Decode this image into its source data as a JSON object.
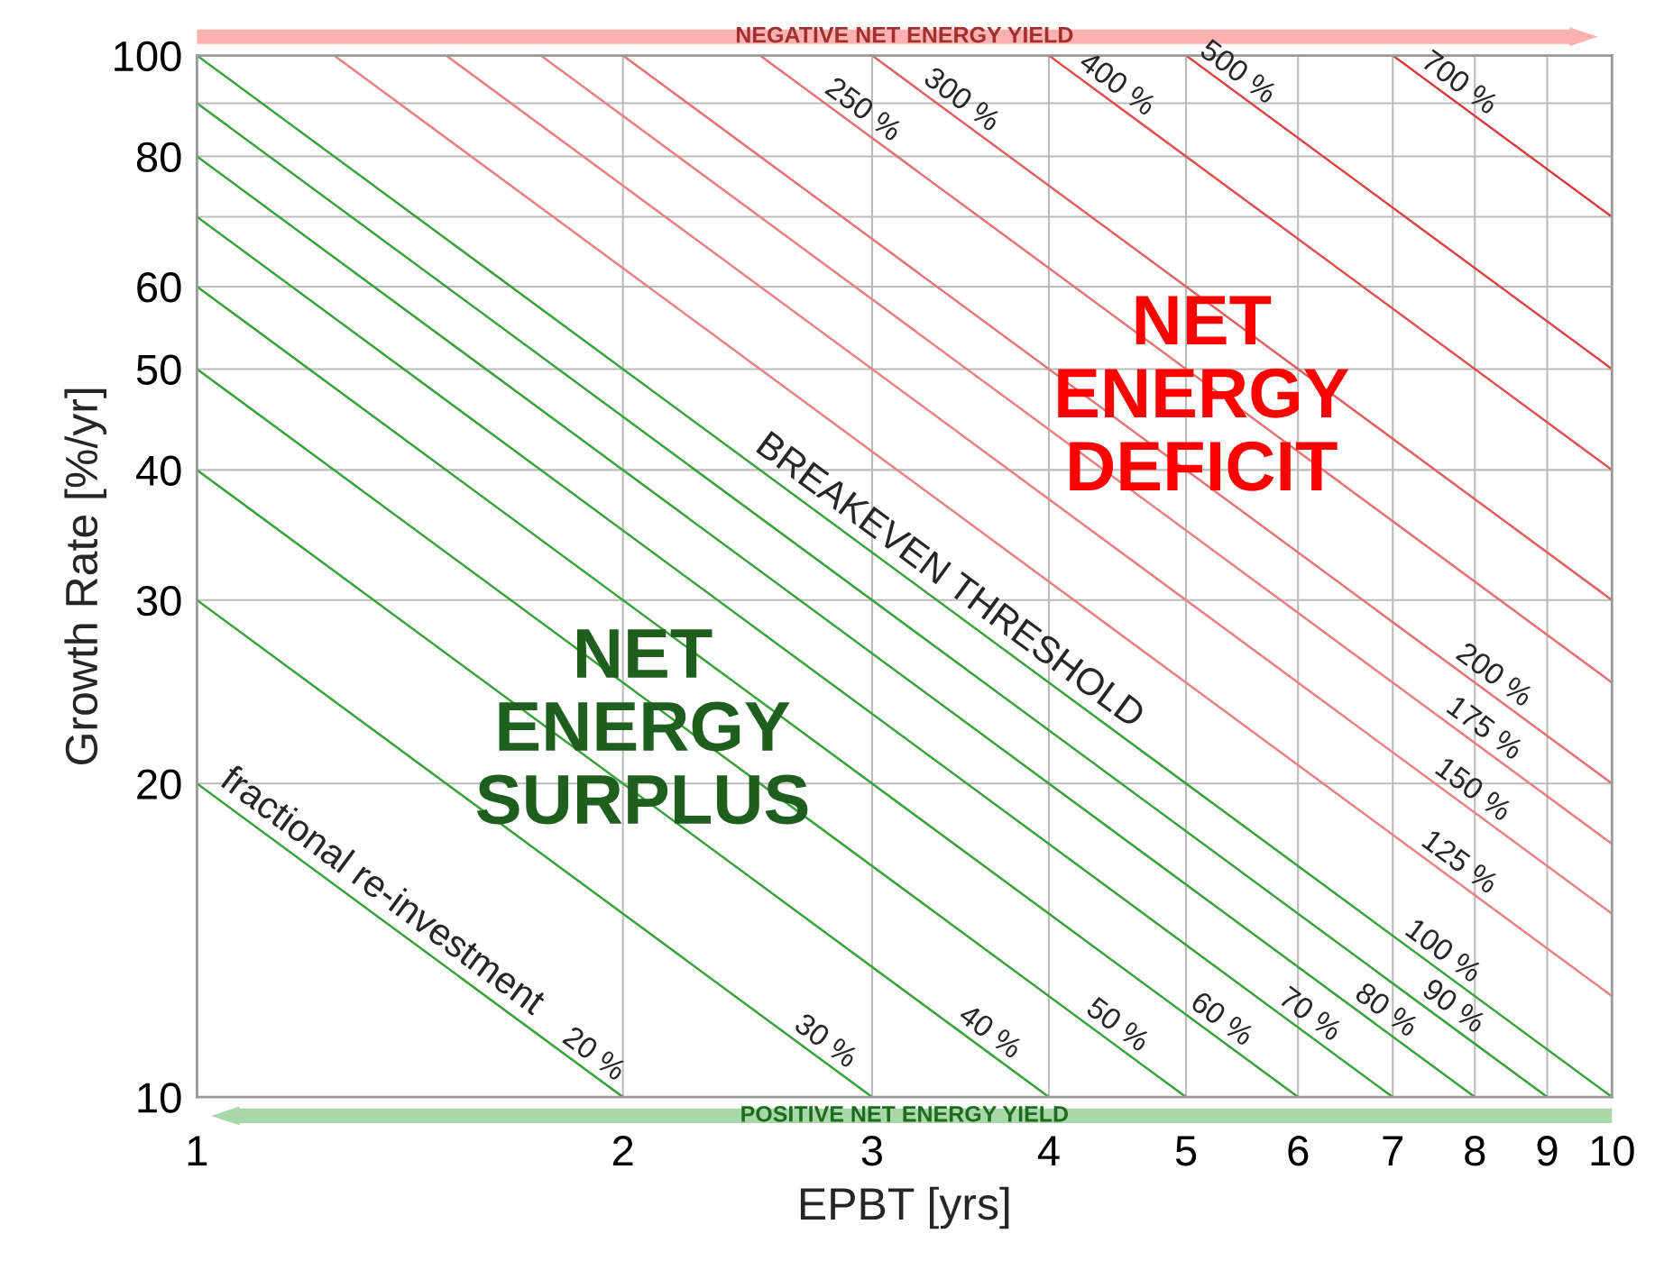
{
  "chart_data": {
    "type": "line",
    "xlabel": "EPBT [yrs]",
    "ylabel": "Growth Rate [%/yr]",
    "log": "xy",
    "xlim": [
      1,
      10
    ],
    "ylim": [
      10,
      100
    ],
    "xticks": [
      1,
      2,
      3,
      4,
      5,
      6,
      7,
      8,
      9,
      10
    ],
    "yticks": [
      10,
      20,
      30,
      40,
      50,
      60,
      {
        "value": 70,
        "label": null
      },
      80,
      {
        "value": 90,
        "label": null
      },
      100
    ],
    "grid": true,
    "legend": false,
    "marker": "none",
    "line_style": "solid",
    "series": [
      {
        "name": "20 %",
        "color": "#3aa23a",
        "x": [
          1,
          2
        ],
        "values": [
          20,
          10
        ]
      },
      {
        "name": "30 %",
        "color": "#3aa23a",
        "x": [
          1,
          3
        ],
        "values": [
          30,
          10
        ]
      },
      {
        "name": "40 %",
        "color": "#3aa23a",
        "x": [
          1,
          4
        ],
        "values": [
          40,
          10
        ]
      },
      {
        "name": "50 %",
        "color": "#3aa23a",
        "x": [
          1,
          5
        ],
        "values": [
          50,
          10
        ]
      },
      {
        "name": "60 %",
        "color": "#3aa23a",
        "x": [
          1,
          6
        ],
        "values": [
          60,
          10
        ]
      },
      {
        "name": "70 %",
        "color": "#3aa23a",
        "x": [
          1,
          7
        ],
        "values": [
          70,
          10
        ]
      },
      {
        "name": "80 %",
        "color": "#3aa23a",
        "x": [
          1,
          8
        ],
        "values": [
          80,
          10
        ]
      },
      {
        "name": "90 %",
        "color": "#3aa23a",
        "x": [
          1,
          9
        ],
        "values": [
          90,
          10
        ]
      },
      {
        "name": "100 %",
        "color": "#3aa23a",
        "x": [
          1,
          10
        ],
        "values": [
          100,
          10
        ]
      },
      {
        "name": "125 %",
        "color": "#e88080",
        "x": [
          1.25,
          10
        ],
        "values": [
          100,
          12.5
        ]
      },
      {
        "name": "150 %",
        "color": "#e88080",
        "x": [
          1.5,
          10
        ],
        "values": [
          100,
          15
        ]
      },
      {
        "name": "175 %",
        "color": "#e88080",
        "x": [
          1.75,
          10
        ],
        "values": [
          100,
          17.5
        ]
      },
      {
        "name": "200 %",
        "color": "#e57373",
        "x": [
          2,
          10
        ],
        "values": [
          100,
          20
        ]
      },
      {
        "name": "250 %",
        "color": "#e57373",
        "x": [
          2.5,
          10
        ],
        "values": [
          100,
          25
        ]
      },
      {
        "name": "300 %",
        "color": "#e06060",
        "x": [
          3,
          10
        ],
        "values": [
          100,
          30
        ]
      },
      {
        "name": "400 %",
        "color": "#e05050",
        "x": [
          4,
          10
        ],
        "values": [
          100,
          40
        ]
      },
      {
        "name": "500 %",
        "color": "#dc4444",
        "x": [
          5,
          10
        ],
        "values": [
          100,
          50
        ]
      },
      {
        "name": "700 %",
        "color": "#d83a3a",
        "x": [
          7,
          10
        ],
        "values": [
          100,
          70
        ]
      }
    ],
    "annotations": [
      "NEGATIVE NET ENERGY YIELD",
      "POSITIVE NET ENERGY YIELD",
      "NET\nENERGY\nDEFICIT",
      "NET\nENERGY\nSURPLUS",
      {
        "text": "BREAKEVEN THRESHOLD",
        "x": 3.4,
        "y": 29.4
      },
      {
        "text": "fractional re-investment",
        "x": 1.35,
        "y": 14.8
      }
    ]
  }
}
